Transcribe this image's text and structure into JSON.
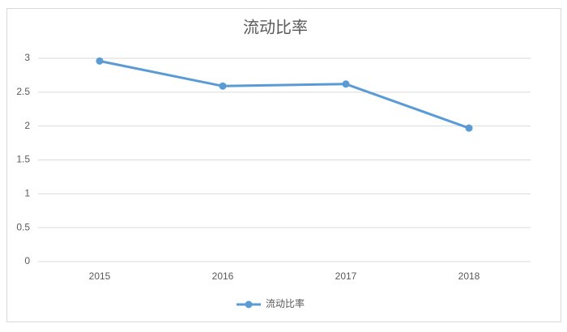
{
  "chart_data": {
    "type": "line",
    "title": "流动比率",
    "categories": [
      "2015",
      "2016",
      "2017",
      "2018"
    ],
    "series": [
      {
        "name": "流动比率",
        "color": "#5b9bd5",
        "values": [
          2.96,
          2.59,
          2.62,
          1.97
        ]
      }
    ],
    "ylim": [
      0,
      3
    ],
    "yticks": [
      0,
      0.5,
      1,
      1.5,
      2,
      2.5,
      3
    ],
    "grid": true,
    "legend": "bottom"
  }
}
